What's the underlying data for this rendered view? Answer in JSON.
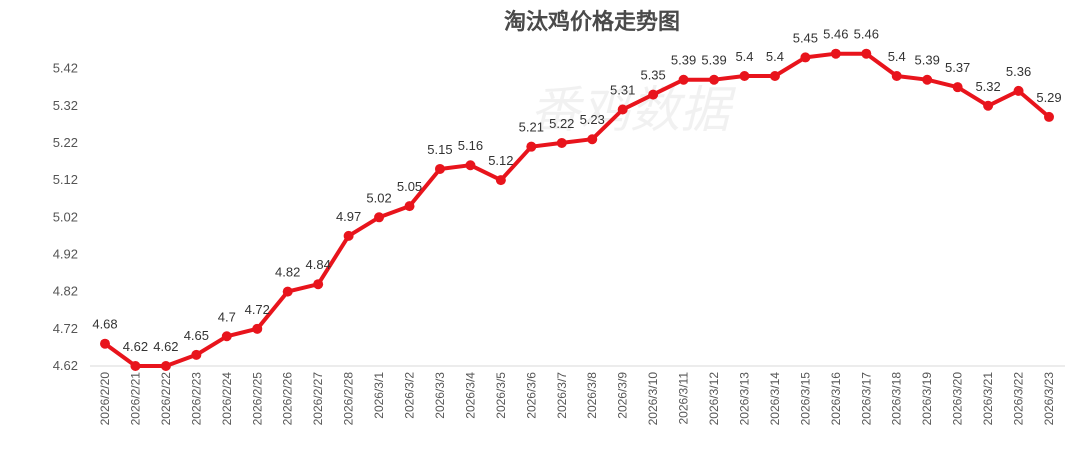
{
  "chart_data": {
    "type": "line",
    "title": "淘汰鸡价格走势图",
    "watermark": "番鸡数据",
    "line_color": "#e8141c",
    "ylim": [
      4.62,
      5.47
    ],
    "yticks": [
      4.62,
      4.72,
      4.82,
      4.92,
      5.02,
      5.12,
      5.22,
      5.32,
      5.42
    ],
    "grid": false,
    "legend": "none",
    "categories": [
      "2026/2/20",
      "2026/2/21",
      "2026/2/22",
      "2026/2/23",
      "2026/2/24",
      "2026/2/25",
      "2026/2/26",
      "2026/2/27",
      "2026/2/28",
      "2026/3/1",
      "2026/3/2",
      "2026/3/3",
      "2026/3/4",
      "2026/3/5",
      "2026/3/6",
      "2026/3/7",
      "2026/3/8",
      "2026/3/9",
      "2026/3/10",
      "2026/3/11",
      "2026/3/12",
      "2026/3/13",
      "2026/3/14",
      "2026/3/15",
      "2026/3/16",
      "2026/3/17",
      "2026/3/18",
      "2026/3/19",
      "2026/3/20",
      "2026/3/21",
      "2026/3/22",
      "2026/3/23"
    ],
    "values": [
      4.68,
      4.62,
      4.62,
      4.65,
      4.7,
      4.72,
      4.82,
      4.84,
      4.97,
      5.02,
      5.05,
      5.15,
      5.16,
      5.12,
      5.21,
      5.22,
      5.23,
      5.31,
      5.35,
      5.39,
      5.39,
      5.4,
      5.4,
      5.45,
      5.46,
      5.46,
      5.4,
      5.39,
      5.37,
      5.32,
      5.36,
      5.29
    ]
  }
}
